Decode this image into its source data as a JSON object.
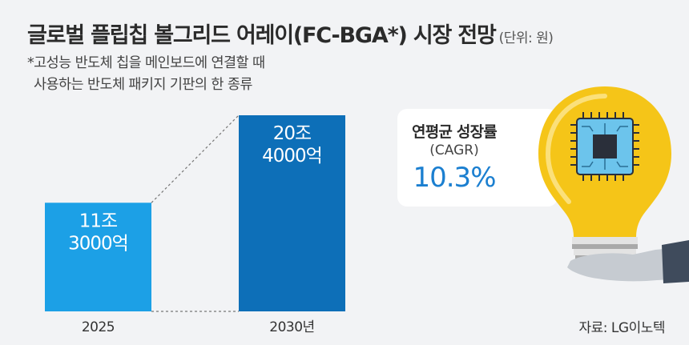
{
  "title": "글로벌 플립칩 볼그리드 어레이(FC-BGA*) 시장 전망",
  "unit": "(단위: 원)",
  "note": [
    "*고성능 반도체 칩을 메인보드에 연결할 때",
    "사용하는 반도체 패키지 기판의 한 종류"
  ],
  "cagr": {
    "title": "연평균 성장률",
    "subtitle": "(CAGR)",
    "value": "10.3%"
  },
  "source": "자료: LG이노텍",
  "colors": {
    "bar_2025": "#1ca0e6",
    "bar_2030": "#0d6fb8",
    "accent": "#1b7fd0",
    "bulb": "#f5c518"
  },
  "chart_data": {
    "type": "bar",
    "categories": [
      "2025",
      "2030년"
    ],
    "values": [
      113000,
      204000
    ],
    "value_labels": [
      [
        "11조",
        "3000억"
      ],
      [
        "20조",
        "4000억"
      ]
    ]
  }
}
